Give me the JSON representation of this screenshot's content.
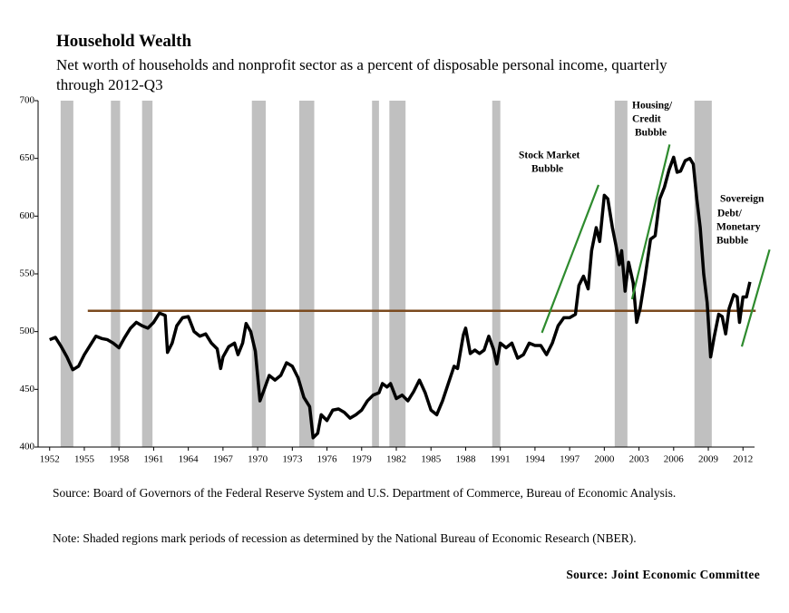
{
  "chart_data": {
    "type": "line",
    "title": "Household Wealth",
    "subtitle": "Net worth of households and nonprofit sector as a percent of disposable personal income, quarterly through 2012-Q3",
    "x": [
      1952.0,
      1952.5,
      1953.0,
      1953.5,
      1954.0,
      1954.5,
      1955.0,
      1955.5,
      1956.0,
      1956.5,
      1957.0,
      1957.5,
      1958.0,
      1958.5,
      1959.0,
      1959.5,
      1960.0,
      1960.5,
      1961.0,
      1961.5,
      1962.0,
      1962.2,
      1962.6,
      1963.0,
      1963.5,
      1964.0,
      1964.5,
      1965.0,
      1965.5,
      1966.0,
      1966.5,
      1966.8,
      1967.0,
      1967.5,
      1968.0,
      1968.3,
      1968.7,
      1969.0,
      1969.4,
      1969.8,
      1970.2,
      1970.5,
      1971.0,
      1971.5,
      1972.0,
      1972.5,
      1973.0,
      1973.5,
      1974.0,
      1974.5,
      1974.8,
      1975.2,
      1975.5,
      1976.0,
      1976.5,
      1977.0,
      1977.5,
      1978.0,
      1978.5,
      1979.0,
      1979.5,
      1980.0,
      1980.5,
      1980.8,
      1981.2,
      1981.5,
      1982.0,
      1982.5,
      1983.0,
      1983.5,
      1984.0,
      1984.5,
      1985.0,
      1985.5,
      1986.0,
      1986.5,
      1987.0,
      1987.3,
      1987.8,
      1988.0,
      1988.4,
      1988.8,
      1989.2,
      1989.6,
      1990.0,
      1990.4,
      1990.7,
      1991.0,
      1991.5,
      1992.0,
      1992.5,
      1993.0,
      1993.5,
      1994.0,
      1994.5,
      1995.0,
      1995.5,
      1996.0,
      1996.5,
      1997.0,
      1997.5,
      1997.8,
      1998.2,
      1998.6,
      1998.9,
      1999.3,
      1999.6,
      2000.0,
      2000.3,
      2000.7,
      2001.0,
      2001.3,
      2001.5,
      2001.8,
      2002.1,
      2002.5,
      2002.8,
      2003.1,
      2003.5,
      2004.0,
      2004.4,
      2004.8,
      2005.2,
      2005.6,
      2006.0,
      2006.3,
      2006.6,
      2007.0,
      2007.4,
      2007.7,
      2008.0,
      2008.3,
      2008.6,
      2008.9,
      2009.2,
      2009.5,
      2009.9,
      2010.2,
      2010.5,
      2010.8,
      2011.2,
      2011.5,
      2011.7,
      2012.0,
      2012.3,
      2012.6
    ],
    "values": [
      493,
      495,
      487,
      478,
      467,
      470,
      480,
      488,
      496,
      494,
      493,
      490,
      486,
      495,
      503,
      508,
      505,
      503,
      508,
      516,
      514,
      482,
      490,
      505,
      512,
      513,
      500,
      496,
      498,
      490,
      485,
      468,
      478,
      487,
      490,
      480,
      490,
      507,
      500,
      483,
      440,
      448,
      462,
      458,
      462,
      473,
      470,
      460,
      443,
      435,
      408,
      412,
      428,
      423,
      432,
      433,
      430,
      425,
      428,
      432,
      440,
      445,
      447,
      455,
      452,
      455,
      442,
      445,
      440,
      448,
      458,
      447,
      432,
      428,
      440,
      455,
      470,
      468,
      497,
      503,
      481,
      484,
      481,
      484,
      496,
      485,
      472,
      490,
      486,
      490,
      477,
      480,
      490,
      488,
      488,
      480,
      490,
      505,
      512,
      512,
      515,
      540,
      548,
      537,
      570,
      590,
      578,
      618,
      615,
      590,
      575,
      558,
      570,
      535,
      560,
      542,
      508,
      520,
      545,
      580,
      583,
      615,
      625,
      640,
      651,
      638,
      639,
      648,
      650,
      645,
      615,
      590,
      550,
      525,
      478,
      495,
      515,
      513,
      498,
      520,
      532,
      530,
      508,
      530,
      530,
      543
    ],
    "color": "#000000",
    "xlim": [
      1951,
      2013
    ],
    "xticks": [
      1952,
      1955,
      1958,
      1961,
      1964,
      1967,
      1970,
      1973,
      1976,
      1979,
      1982,
      1985,
      1988,
      1991,
      1994,
      1997,
      2000,
      2003,
      2006,
      2009,
      2012
    ],
    "ylim": [
      400,
      700
    ],
    "yticks": [
      400,
      450,
      500,
      550,
      600,
      650,
      700
    ],
    "recessions": [
      [
        1952.95,
        1954.05
      ],
      [
        1957.3,
        1958.1
      ],
      [
        1960.0,
        1960.9
      ],
      [
        1969.5,
        1970.7
      ],
      [
        1973.6,
        1974.9
      ],
      [
        1979.9,
        1980.5
      ],
      [
        1981.4,
        1982.8
      ],
      [
        1990.3,
        1991.0
      ],
      [
        2000.9,
        2002.0
      ],
      [
        2007.8,
        2009.3
      ]
    ],
    "recession_color": "#c0c0c0",
    "reference_line": {
      "value": 518,
      "x": [
        1955.3,
        2013.1
      ],
      "color": "#7b4a1e"
    },
    "trend_lines": [
      {
        "x": [
          1994.6,
          1999.5
        ],
        "y": [
          499,
          627
        ]
      },
      {
        "x": [
          2002.4,
          2005.65
        ],
        "y": [
          528,
          662
        ]
      },
      {
        "x": [
          2011.9,
          2014.3
        ],
        "y": [
          487,
          571
        ]
      }
    ],
    "trend_color": "#2e8b2e",
    "annotations": [
      [
        "Stock Market",
        "Bubble"
      ],
      [
        "Housing/",
        "Credit",
        "Bubble"
      ],
      [
        "Sovereign",
        "Debt/",
        "Monetary",
        "Bubble"
      ]
    ],
    "source": "Source: Board of Governors of the Federal Reserve System and U.S. Department of Commerce, Bureau of Economic Analysis.",
    "note": "Note: Shaded regions mark periods of recession as determined by the National Bureau of Economic Research (NBER).",
    "credit": "Source: Joint Economic Committee"
  }
}
